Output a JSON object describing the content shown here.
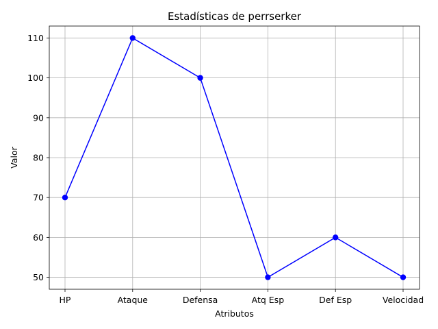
{
  "chart_data": {
    "type": "line",
    "title": "Estadísticas de perrserker",
    "xlabel": "Atributos",
    "ylabel": "Valor",
    "categories": [
      "HP",
      "Ataque",
      "Defensa",
      "Atq Esp",
      "Def Esp",
      "Velocidad"
    ],
    "series": [
      {
        "values": [
          70,
          110,
          100,
          50,
          60,
          50
        ],
        "color": "#0000ff",
        "marker": "circle"
      }
    ],
    "ylim": [
      47,
      113
    ],
    "yticks": [
      50,
      60,
      70,
      80,
      90,
      100,
      110
    ],
    "grid": true
  }
}
